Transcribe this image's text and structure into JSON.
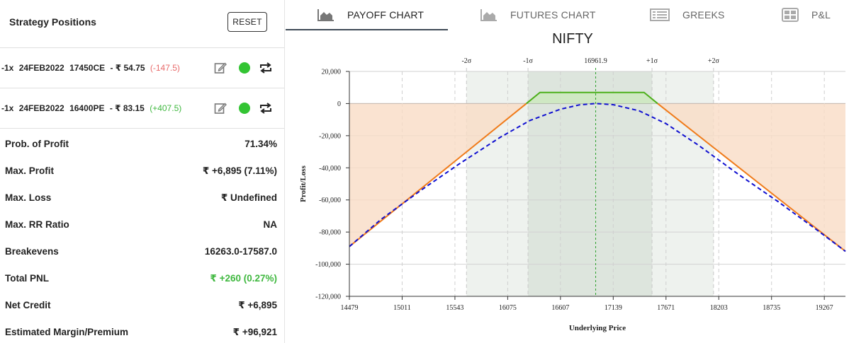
{
  "left_panel": {
    "title": "Strategy Positions",
    "reset_label": "RESET",
    "positions": [
      {
        "qty": "-1x",
        "expiry": "24FEB2022",
        "strike": "17450CE",
        "price": "- ₹ 54.75",
        "pnl": "(-147.5)",
        "pnl_sign": "negative"
      },
      {
        "qty": "-1x",
        "expiry": "24FEB2022",
        "strike": "16400PE",
        "price": "- ₹ 83.15",
        "pnl": "(+407.5)",
        "pnl_sign": "positive"
      }
    ],
    "metrics": [
      {
        "label": "Prob. of Profit",
        "value": "71.34%"
      },
      {
        "label": "Max. Profit",
        "value": "₹ +6,895 (7.11%)"
      },
      {
        "label": "Max. Loss",
        "value": "₹ Undefined"
      },
      {
        "label": "Max. RR Ratio",
        "value": "NA"
      },
      {
        "label": "Breakevens",
        "value": "16263.0-17587.0"
      },
      {
        "label": "Total PNL",
        "value": "₹ +260 (0.27%)",
        "color": "#3fb83f"
      },
      {
        "label": "Net Credit",
        "value": "₹ +6,895"
      },
      {
        "label": "Estimated Margin/Premium",
        "value": "₹ +96,921"
      }
    ]
  },
  "tabs": [
    {
      "label": "PAYOFF CHART",
      "icon": "area-chart-icon",
      "active": true
    },
    {
      "label": "FUTURES CHART",
      "icon": "area-chart-icon",
      "active": false
    },
    {
      "label": "GREEKS",
      "icon": "list-icon",
      "active": false
    },
    {
      "label": "P&L",
      "icon": "grid-icon",
      "active": false
    }
  ],
  "colors": {
    "profit_line": "#4caf1a",
    "loss_line": "#f07b1a",
    "loss_fill": "#f9dcc5",
    "profit_fill": "#cde8c0",
    "t0_line": "#1010d0",
    "sigma_band_1": "#dde5dd",
    "sigma_band_2": "#eef2ee",
    "spot_line": "#2aa02a"
  },
  "chart_data": {
    "type": "line",
    "title": "NIFTY",
    "xlabel": "Underlying Price",
    "ylabel": "Profit/Loss",
    "xlim": [
      14479,
      19480
    ],
    "ylim": [
      -120000,
      20000
    ],
    "xticks": [
      14479,
      15011,
      15543,
      16075,
      16607,
      17139,
      17671,
      18203,
      18735,
      19267
    ],
    "yticks": [
      20000,
      0,
      -20000,
      -40000,
      -60000,
      -80000,
      -100000,
      -120000
    ],
    "ytick_labels": [
      "20,000",
      "0",
      "-20,000",
      "-40,000",
      "-60,000",
      "-80,000",
      "-100,000",
      "-120,000"
    ],
    "spot": 16961.9,
    "spot_label": "16961.9",
    "sigma_levels": [
      {
        "label": "-2σ",
        "x": 15660
      },
      {
        "label": "-1σ",
        "x": 16280
      },
      {
        "label": "+1σ",
        "x": 17530
      },
      {
        "label": "+2σ",
        "x": 18150
      }
    ],
    "breakevens": [
      16263.0,
      17587.0
    ],
    "max_profit": 6895,
    "series": [
      {
        "role": "expiry_payoff",
        "x": [
          14479,
          16263,
          16400,
          17450,
          17587,
          19480
        ],
        "y": [
          -89000,
          0,
          6895,
          6895,
          0,
          -92000
        ]
      },
      {
        "role": "t0_payoff",
        "x": [
          14479,
          14800,
          15200,
          15600,
          16000,
          16300,
          16607,
          16800,
          16961.9,
          17139,
          17400,
          17671,
          18000,
          18400,
          18800,
          19200,
          19480
        ],
        "y": [
          -89000,
          -72000,
          -54000,
          -37000,
          -21000,
          -10500,
          -3500,
          -800,
          0,
          -700,
          -4500,
          -12500,
          -26000,
          -44000,
          -61000,
          -79000,
          -92000
        ]
      }
    ]
  }
}
